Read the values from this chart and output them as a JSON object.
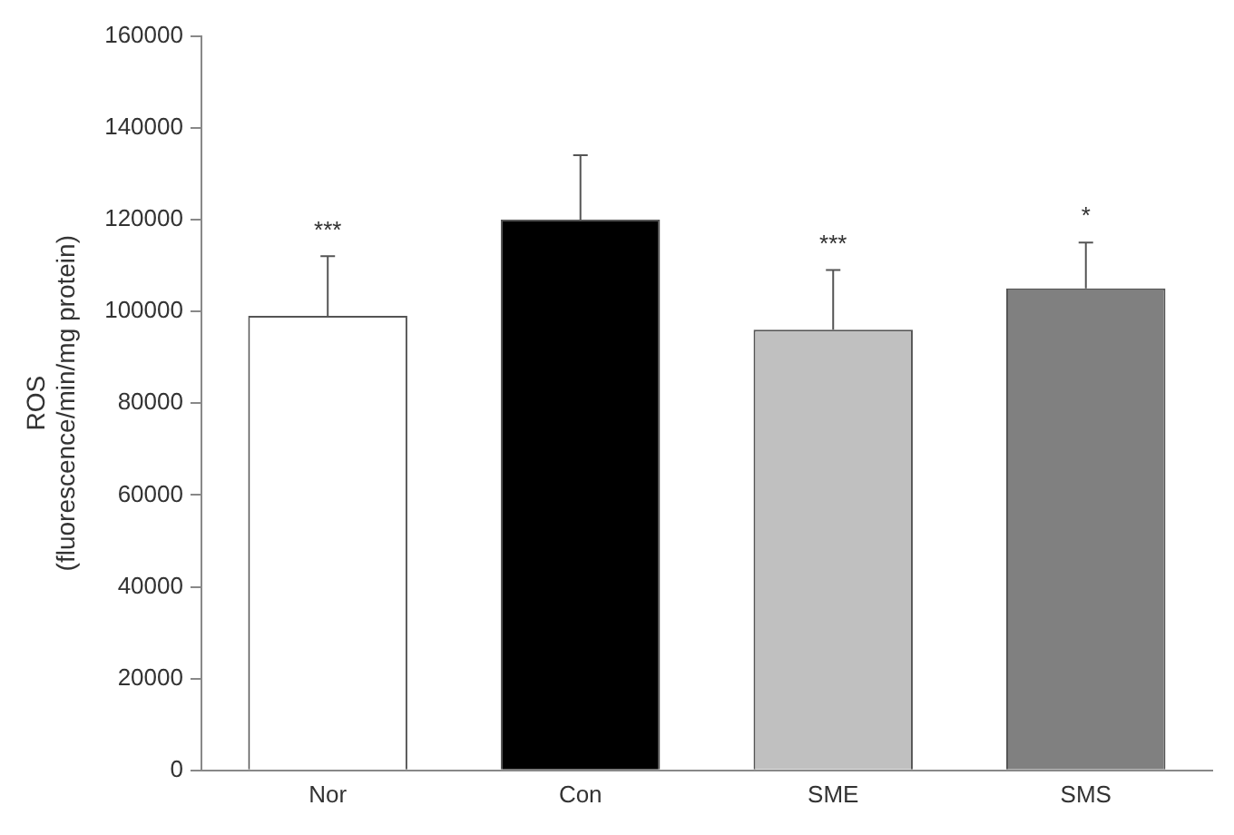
{
  "chart_data": {
    "type": "bar",
    "ylabel": "ROS\n(fluorescence/min/mg protein)",
    "categories": [
      "Nor",
      "Con",
      "SME",
      "SMS"
    ],
    "values": [
      99000,
      120000,
      96000,
      105000
    ],
    "colors": [
      "#ffffff",
      "#000000",
      "#c0c0c0",
      "#808080"
    ],
    "errors": [
      [
        99000,
        112000
      ],
      [
        120000,
        134000
      ],
      [
        96000,
        109000
      ],
      [
        105000,
        115000
      ]
    ],
    "ylim": [
      0,
      160000
    ],
    "yticks": [
      0,
      20000,
      40000,
      60000,
      80000,
      100000,
      120000,
      140000,
      160000
    ],
    "grid": false,
    "legend": false,
    "annotations": [
      {
        "text": "***",
        "x": "Nor",
        "y": 112000
      },
      {
        "text": "***",
        "x": "SME",
        "y": 109000
      },
      {
        "text": "*",
        "x": "SMS",
        "y": 115000
      }
    ]
  }
}
